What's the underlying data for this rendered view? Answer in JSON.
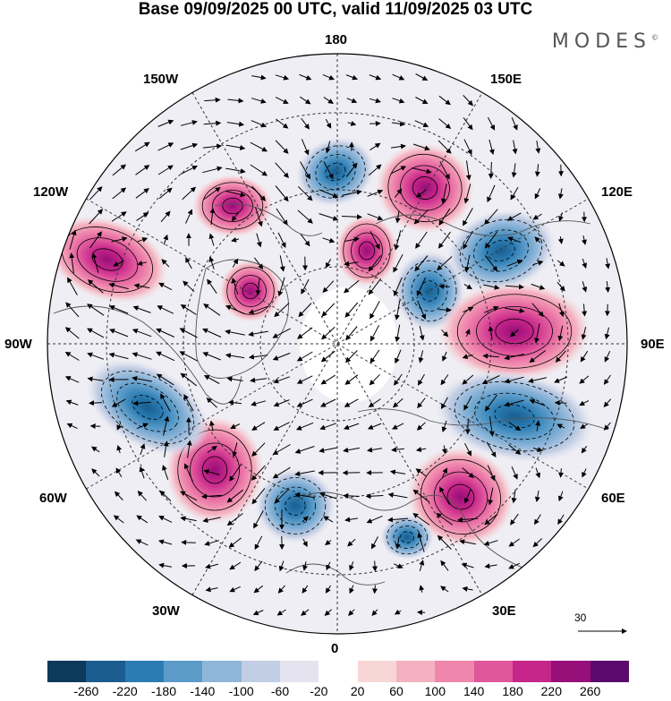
{
  "title": "Base 09/09/2025 00 UTC, valid 11/09/2025 03 UTC",
  "brand": "MODES",
  "brand_mark": "©",
  "longitude_labels": {
    "top": "180",
    "bottom": "0",
    "left": "90W",
    "right": "90E",
    "upper_left_1": "150W",
    "upper_left_2": "120W",
    "upper_right_1": "150E",
    "upper_right_2": "120E",
    "lower_left_1": "60W",
    "lower_left_2": "30W",
    "lower_right_1": "60E",
    "lower_right_2": "30E"
  },
  "vector_scale": "30",
  "colorbar": {
    "colors": [
      "#0c3a5c",
      "#1a5d8e",
      "#2b7cb3",
      "#5b9bc8",
      "#8fb6d9",
      "#c2cee4",
      "#e4e3ef",
      "#ffffff",
      "#f9d6d6",
      "#f4b1c0",
      "#ef87ad",
      "#e0579c",
      "#c62589",
      "#970f78",
      "#5b0a6b"
    ],
    "ticks": [
      "-260",
      "-220",
      "-180",
      "-140",
      "-100",
      "-60",
      "-20",
      "20",
      "60",
      "100",
      "140",
      "180",
      "220",
      "260"
    ]
  },
  "anomalies": [
    {
      "name": "bering-low",
      "sign": "neg",
      "value": -200
    },
    {
      "name": "east-siberia-high",
      "sign": "pos",
      "value": 220
    },
    {
      "name": "central-siberia-low",
      "sign": "neg",
      "value": -200
    },
    {
      "name": "arctic-high",
      "sign": "pos",
      "value": 160
    },
    {
      "name": "kara-low",
      "sign": "neg",
      "value": -120
    },
    {
      "name": "ural-high",
      "sign": "pos",
      "value": 160
    },
    {
      "name": "kazakh-low",
      "sign": "neg",
      "value": -140
    },
    {
      "name": "caspian-high",
      "sign": "pos",
      "value": 200
    },
    {
      "name": "mediterranean-low",
      "sign": "neg",
      "value": -60
    },
    {
      "name": "atlantic-high",
      "sign": "pos",
      "value": 240
    },
    {
      "name": "north-atlantic-low",
      "sign": "neg",
      "value": -180
    },
    {
      "name": "canada-low",
      "sign": "neg",
      "value": -200
    },
    {
      "name": "alaska-high",
      "sign": "pos",
      "value": 140
    },
    {
      "name": "pacific-high",
      "sign": "pos",
      "value": 120
    },
    {
      "name": "baffin-high",
      "sign": "pos",
      "value": 140
    }
  ]
}
